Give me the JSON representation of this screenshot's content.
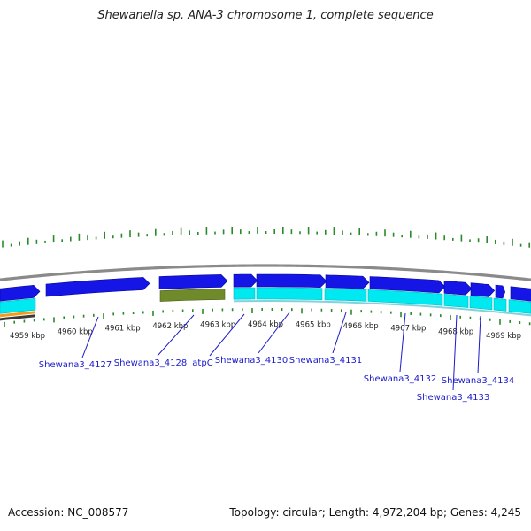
{
  "title": "Shewanella sp. ANA-3 chromosome 1, complete sequence",
  "footer": {
    "accession": "Accession: NC_008577",
    "summary": "Topology: circular; Length: 4,972,204 bp; Genes: 4,245"
  },
  "colors": {
    "backbone": "#8a8a8a",
    "cds_forward": "#1515e6",
    "cds_track": "#00e8f0",
    "gene_olive": "#6f8a2a",
    "tick": "#2a8a2a",
    "label": "#1a1acc",
    "orange": "#f59a1a"
  },
  "ticks": [
    {
      "label": "4959 kbp"
    },
    {
      "label": "4960 kbp"
    },
    {
      "label": "4961 kbp"
    },
    {
      "label": "4962 kbp"
    },
    {
      "label": "4963 kbp"
    },
    {
      "label": "4964 kbp"
    },
    {
      "label": "4965 kbp"
    },
    {
      "label": "4966 kbp"
    },
    {
      "label": "4967 kbp"
    },
    {
      "label": "4968 kbp"
    },
    {
      "label": "4969 kbp"
    }
  ],
  "genes": [
    {
      "label": "Shewana3_4127"
    },
    {
      "label": "Shewana3_4128"
    },
    {
      "label": "atpC"
    },
    {
      "label": "Shewana3_4130"
    },
    {
      "label": "Shewana3_4131"
    },
    {
      "label": "Shewana3_4132"
    },
    {
      "label": "Shewana3_4133"
    },
    {
      "label": "Shewana3_4134"
    }
  ]
}
